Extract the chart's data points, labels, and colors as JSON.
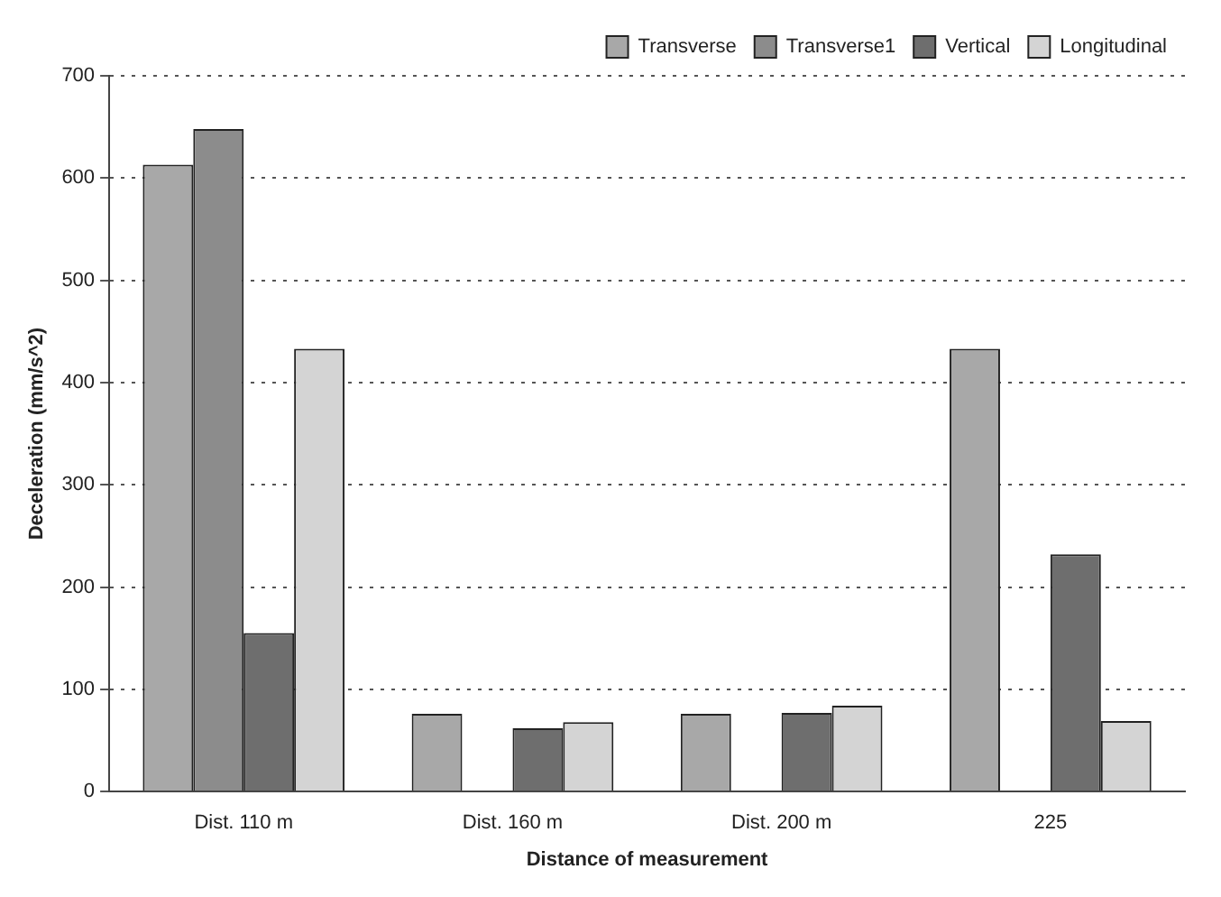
{
  "chart_data": {
    "type": "bar",
    "xlabel": "Distance of measurement",
    "ylabel": "Deceleration (mm/s^2)",
    "categories": [
      "Dist. 110 m",
      "Dist. 160 m",
      "Dist. 200 m",
      "225"
    ],
    "series": [
      {
        "name": "Transverse",
        "color": "#a8a8a8",
        "values": [
          613,
          76,
          76,
          433
        ]
      },
      {
        "name": "Transverse1",
        "color": "#8c8c8c",
        "values": [
          648,
          null,
          null,
          null
        ]
      },
      {
        "name": "Vertical",
        "color": "#6e6e6e",
        "values": [
          155,
          62,
          77,
          232
        ]
      },
      {
        "name": "Longitudinal",
        "color": "#d4d4d4",
        "values": [
          433,
          68,
          84,
          69
        ]
      }
    ],
    "ylim": [
      0,
      700
    ],
    "yticks": [
      0,
      100,
      200,
      300,
      400,
      500,
      600,
      700
    ],
    "grid": "y",
    "legend": "top right"
  }
}
